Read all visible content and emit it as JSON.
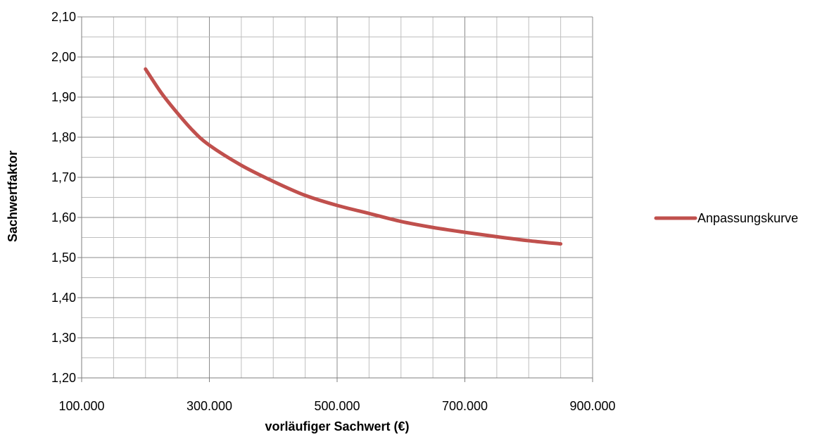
{
  "chart_data": {
    "type": "line",
    "title": "",
    "xlabel": "vorläufiger Sachwert (€)",
    "ylabel": "Sachwertfaktor",
    "xlim": [
      100000,
      900000
    ],
    "ylim": [
      1.2,
      2.1
    ],
    "x_ticks": [
      100000,
      300000,
      500000,
      700000,
      900000
    ],
    "x_tick_labels": [
      "100.000",
      "300.000",
      "500.000",
      "700.000",
      "900.000"
    ],
    "y_ticks": [
      1.2,
      1.3,
      1.4,
      1.5,
      1.6,
      1.7,
      1.8,
      1.9,
      2.0,
      2.1
    ],
    "y_tick_labels": [
      "1,20",
      "1,30",
      "1,40",
      "1,50",
      "1,60",
      "1,70",
      "1,80",
      "1,90",
      "2,00",
      "2,10"
    ],
    "grid": true,
    "legend_position": "right",
    "series": [
      {
        "name": "Anpassungskurve",
        "color": "#c0504d",
        "x": [
          200000,
          225000,
          250000,
          275000,
          300000,
          350000,
          400000,
          450000,
          500000,
          550000,
          600000,
          650000,
          700000,
          750000,
          800000,
          850000
        ],
        "y": [
          1.97,
          1.91,
          1.86,
          1.815,
          1.78,
          1.73,
          1.69,
          1.655,
          1.63,
          1.61,
          1.59,
          1.575,
          1.563,
          1.552,
          1.542,
          1.534
        ]
      }
    ]
  }
}
